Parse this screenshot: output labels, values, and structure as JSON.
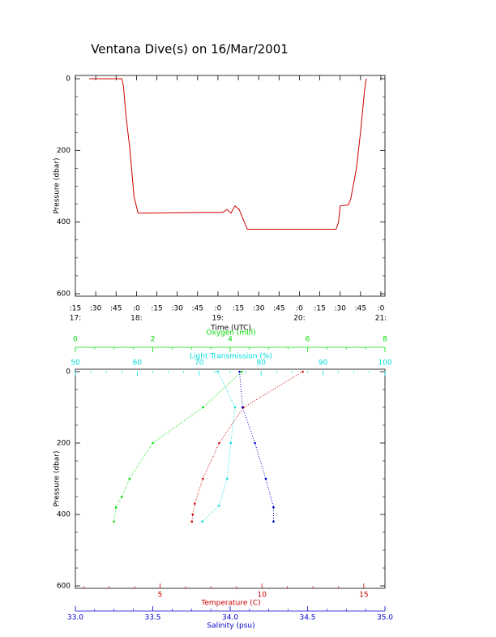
{
  "chart_data": [
    {
      "type": "line",
      "title": "Ventana Dive(s) on 16/Mar/2001",
      "color": "#cc0000",
      "xlabel": "Time (UTC)",
      "ylabel": "Pressure (dbar)",
      "x": [
        17.42,
        17.82,
        17.84,
        17.87,
        17.92,
        17.97,
        18.02,
        18.81,
        19.06,
        19.11,
        19.16,
        19.21,
        19.26,
        19.36,
        20.45,
        20.48,
        20.5,
        20.6,
        20.63,
        20.7,
        20.75,
        20.8,
        20.82
      ],
      "values": [
        0,
        0,
        20,
        100,
        200,
        330,
        375,
        373,
        373,
        365,
        375,
        355,
        365,
        420,
        420,
        400,
        355,
        352,
        335,
        250,
        150,
        30,
        0
      ],
      "xlim": [
        17.25,
        21.05
      ],
      "xticks": [
        {
          "value": 17.25,
          "label": ":15"
        },
        {
          "value": 17.5,
          "label": ":30"
        },
        {
          "value": 17.75,
          "label": ":45"
        },
        {
          "value": 18,
          "label": ":0"
        },
        {
          "value": 18.25,
          "label": ":15"
        },
        {
          "value": 18.5,
          "label": ":30"
        },
        {
          "value": 18.75,
          "label": ":45"
        },
        {
          "value": 19,
          "label": ":0"
        },
        {
          "value": 19.25,
          "label": ":15"
        },
        {
          "value": 19.5,
          "label": ":30"
        },
        {
          "value": 19.75,
          "label": ":45"
        },
        {
          "value": 20,
          "label": ":0"
        },
        {
          "value": 20.25,
          "label": ":15"
        },
        {
          "value": 20.5,
          "label": ":30"
        },
        {
          "value": 20.75,
          "label": ":45"
        },
        {
          "value": 21,
          "label": ":0"
        }
      ],
      "xticks_hours": [
        {
          "value": 17.25,
          "label": "17:"
        },
        {
          "value": 18,
          "label": "18:"
        },
        {
          "value": 19,
          "label": "19:"
        },
        {
          "value": 20,
          "label": "20:"
        },
        {
          "value": 21,
          "label": "21:"
        }
      ],
      "ylim": [
        0,
        600
      ],
      "yticks": [
        0,
        200,
        400,
        600
      ],
      "y_inverted": true
    },
    {
      "type": "profile",
      "ylabel": "Pressure (dbar)",
      "ylim": [
        0,
        600
      ],
      "yticks": [
        0,
        200,
        400,
        600
      ],
      "y_inverted": true,
      "axes": [
        {
          "label": "Oxygen (ml/l)",
          "color": "#00dd00",
          "position": "top",
          "lim": [
            0,
            8
          ],
          "ticks": [
            0,
            2,
            4,
            6,
            8
          ]
        },
        {
          "label": "Light Transmission (%)",
          "color": "#00dddd",
          "position": "top",
          "lim": [
            50,
            100
          ],
          "ticks": [
            50,
            60,
            70,
            80,
            90,
            100
          ]
        },
        {
          "label": "Temperature (C)",
          "color": "#cc0000",
          "position": "bottom",
          "lim": [
            0.84,
            16.04
          ],
          "ticks": [
            5,
            10,
            15
          ]
        },
        {
          "label": "Salinity (psu)",
          "color": "#0000cc",
          "position": "bottom",
          "lim": [
            33,
            35
          ],
          "ticks": [
            {
              "value": 33,
              "label": "33.0"
            },
            {
              "value": 33.5,
              "label": "33.5"
            },
            {
              "value": 34,
              "label": "34.0"
            },
            {
              "value": 34.5,
              "label": "34.5"
            },
            {
              "value": 35,
              "label": "35.0"
            }
          ]
        }
      ],
      "series": [
        {
          "axis": 0,
          "x": [
            4.3,
            3.3,
            2.0,
            1.4,
            1.2,
            1.05,
            1.0
          ],
          "y": [
            0,
            100,
            200,
            300,
            350,
            380,
            420
          ]
        },
        {
          "axis": 1,
          "x": [
            73,
            75.8,
            75.1,
            74.5,
            73.2,
            70.5
          ],
          "y": [
            0,
            100,
            200,
            300,
            375,
            420
          ]
        },
        {
          "axis": 2,
          "x": [
            12.0,
            9.1,
            7.9,
            7.1,
            6.7,
            6.6,
            6.56
          ],
          "y": [
            0,
            100,
            200,
            300,
            370,
            400,
            420
          ]
        },
        {
          "axis": 3,
          "x": [
            34.06,
            34.08,
            34.16,
            34.23,
            34.28,
            34.28
          ],
          "y": [
            0,
            100,
            200,
            300,
            380,
            420
          ]
        }
      ]
    }
  ]
}
